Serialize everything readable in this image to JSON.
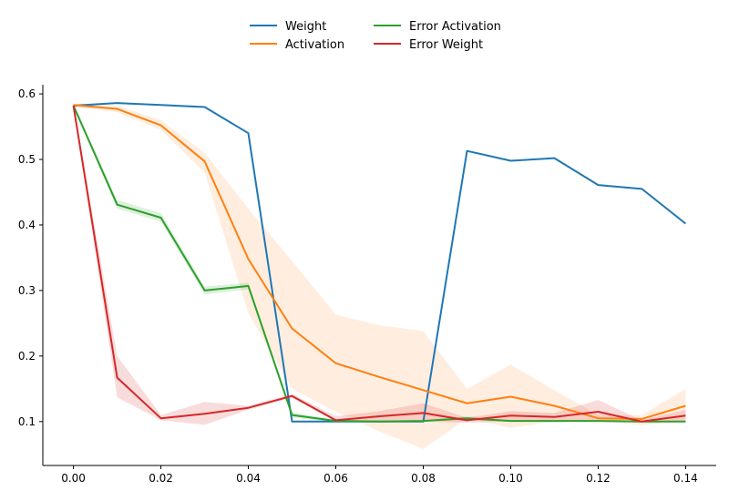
{
  "chart_data": {
    "type": "line",
    "title": "",
    "xlabel": "",
    "ylabel": "",
    "xlim": [
      -0.007,
      0.147
    ],
    "ylim": [
      0.033,
      0.614
    ],
    "x_ticks": [
      0.0,
      0.02,
      0.04,
      0.06,
      0.08,
      0.1,
      0.12,
      0.14
    ],
    "x_tick_labels": [
      "0.00",
      "0.02",
      "0.04",
      "0.06",
      "0.08",
      "0.10",
      "0.12",
      "0.14"
    ],
    "y_ticks": [
      0.1,
      0.2,
      0.3,
      0.4,
      0.5,
      0.6
    ],
    "y_tick_labels": [
      "0.1",
      "0.2",
      "0.3",
      "0.4",
      "0.5",
      "0.6"
    ],
    "grid": false,
    "legend_position": "top-center",
    "x": [
      0.0,
      0.01,
      0.02,
      0.03,
      0.04,
      0.05,
      0.06,
      0.07,
      0.08,
      0.09,
      0.1,
      0.11,
      0.12,
      0.13,
      0.14
    ],
    "series": [
      {
        "name": "Weight",
        "color": "#1f77b4",
        "values": [
          0.582,
          0.586,
          0.583,
          0.58,
          0.54,
          0.1,
          0.1,
          0.1,
          0.1,
          0.513,
          0.498,
          0.502,
          0.461,
          0.455,
          0.402
        ],
        "band_low": null,
        "band_high": null
      },
      {
        "name": "Activation",
        "color": "#ff7f0e",
        "values": [
          0.583,
          0.577,
          0.552,
          0.497,
          0.348,
          0.242,
          0.189,
          0.168,
          0.148,
          0.128,
          0.138,
          0.124,
          0.105,
          0.104,
          0.124
        ],
        "band_low": [
          0.58,
          0.572,
          0.545,
          0.48,
          0.265,
          0.15,
          0.115,
          0.085,
          0.058,
          0.105,
          0.09,
          0.1,
          0.1,
          0.095,
          0.1
        ],
        "band_high": [
          0.586,
          0.582,
          0.56,
          0.51,
          0.425,
          0.345,
          0.263,
          0.247,
          0.238,
          0.15,
          0.187,
          0.148,
          0.11,
          0.11,
          0.15
        ]
      },
      {
        "name": "Error Activation",
        "color": "#2ca02c",
        "values": [
          0.582,
          0.431,
          0.411,
          0.3,
          0.307,
          0.11,
          0.101,
          0.1,
          0.101,
          0.105,
          0.101,
          0.101,
          0.101,
          0.1,
          0.1
        ],
        "band_low": [
          0.58,
          0.425,
          0.405,
          0.294,
          0.302,
          0.106,
          0.099,
          0.099,
          0.1,
          0.102,
          0.1,
          0.1,
          0.1,
          0.099,
          0.099
        ],
        "band_high": [
          0.585,
          0.438,
          0.418,
          0.306,
          0.312,
          0.114,
          0.103,
          0.101,
          0.102,
          0.108,
          0.102,
          0.102,
          0.102,
          0.101,
          0.101
        ]
      },
      {
        "name": "Error Weight",
        "color": "#d62728",
        "values": [
          0.582,
          0.167,
          0.105,
          0.112,
          0.121,
          0.139,
          0.102,
          0.108,
          0.113,
          0.102,
          0.109,
          0.107,
          0.115,
          0.1,
          0.109
        ],
        "band_low": [
          0.58,
          0.137,
          0.102,
          0.095,
          0.118,
          0.136,
          0.1,
          0.102,
          0.1,
          0.098,
          0.1,
          0.1,
          0.102,
          0.098,
          0.1
        ],
        "band_high": [
          0.585,
          0.2,
          0.11,
          0.13,
          0.124,
          0.142,
          0.108,
          0.116,
          0.128,
          0.106,
          0.116,
          0.113,
          0.133,
          0.102,
          0.118
        ]
      }
    ]
  }
}
